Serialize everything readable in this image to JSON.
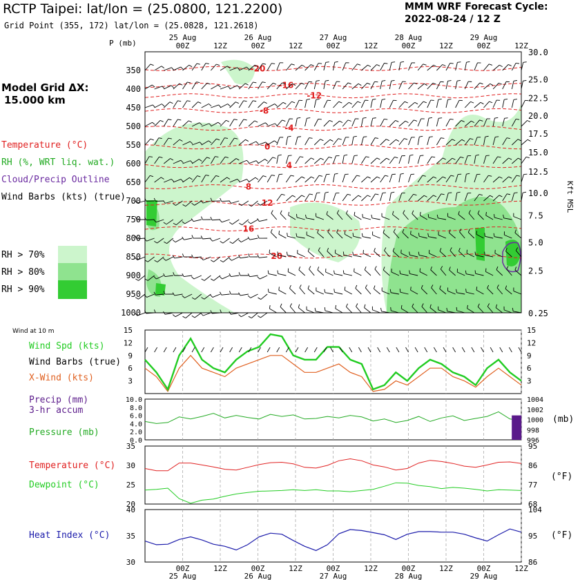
{
  "header": {
    "title": "RCTP Taipei:  lat/lon = (25.0800, 121.2200)",
    "subtitle": "Grid Point (355, 172) lat/lon = (25.0828, 121.2618)",
    "cycle_label": "MMM WRF Forecast Cycle:",
    "cycle_value": "2022-08-24 / 12  Z"
  },
  "left_panel": {
    "model_grid": "Model Grid ΔX:",
    "model_grid_value": "15.000 km",
    "legend_temperature": "Temperature (°C)",
    "legend_rh": "RH (%, WRT liq. wat.)",
    "legend_cloud": "Cloud/Precip Outline",
    "legend_barbs": "Wind Barbs (kts) (true)",
    "rh_70": "RH > 70%",
    "rh_80": "RH > 80%",
    "rh_90": "RH > 90%",
    "p_label": "P (mb)",
    "kft_label": "Kft MSL"
  },
  "colors": {
    "rh70": "#ccf5cc",
    "rh80": "#8fe38f",
    "rh90": "#33cc33",
    "temp": "#e02020",
    "wind": "#22cc22",
    "xwind": "#e06020",
    "pressure": "#22aa22",
    "dewpoint": "#22cc22",
    "heat": "#1a1aaa",
    "precip": "#5a1a8a",
    "cloud": "#6a2aa0"
  },
  "time_axis": {
    "dates": [
      "25 Aug",
      "26 Aug",
      "27 Aug",
      "28 Aug",
      "29 Aug"
    ],
    "hour_labels": [
      "00Z",
      "12Z",
      "00Z",
      "12Z",
      "00Z",
      "12Z",
      "00Z",
      "12Z",
      "00Z",
      "12Z"
    ],
    "start_hour": -12,
    "end_hour": 108
  },
  "chart_data": [
    {
      "type": "heatmap",
      "title": "Vertical cross-section (time-height)",
      "ylabel": "P (mb)",
      "y2label": "Kft MSL",
      "pressure_levels": [
        350,
        400,
        450,
        500,
        550,
        600,
        650,
        700,
        750,
        800,
        850,
        900,
        950,
        1000
      ],
      "kft_labels": [
        "30.0",
        "25.0",
        "22.5",
        "20.0",
        "17.5",
        "15.0",
        "12.5",
        "10.0",
        "7.5",
        "5.0",
        "2.5",
        "0.25"
      ],
      "kft_label_pressures": [
        302,
        375,
        425,
        472,
        520,
        570,
        622,
        680,
        740,
        812,
        888,
        1002
      ],
      "ylim": [
        300,
        1000
      ],
      "temperature_contours": [
        {
          "label": "-20",
          "p": 345,
          "hour": 24
        },
        {
          "label": "-16",
          "p": 390,
          "hour": 33
        },
        {
          "label": "-12",
          "p": 418,
          "hour": 42
        },
        {
          "label": "-8",
          "p": 458,
          "hour": 26
        },
        {
          "label": "-4",
          "p": 505,
          "hour": 34
        },
        {
          "label": "0",
          "p": 555,
          "hour": 27
        },
        {
          "label": "4",
          "p": 605,
          "hour": 34
        },
        {
          "label": "8",
          "p": 662,
          "hour": 21
        },
        {
          "label": "12",
          "p": 706,
          "hour": 27
        },
        {
          "label": "16",
          "p": 775,
          "hour": 21
        },
        {
          "label": "20",
          "p": 848,
          "hour": 30
        }
      ]
    },
    {
      "type": "line",
      "title": "Wind at 10 m",
      "ylim": [
        0,
        15
      ],
      "yticks": [
        3,
        6,
        9,
        12,
        15
      ],
      "series": [
        {
          "name": "Wind Spd (kts)",
          "values": [
            8,
            5,
            1,
            9,
            13,
            8,
            6,
            5,
            8,
            10,
            11,
            14,
            13.5,
            9,
            8,
            8,
            11,
            11,
            8,
            7,
            1,
            2,
            5,
            3,
            6,
            8,
            7,
            5,
            4,
            2,
            6,
            8,
            5,
            3
          ]
        },
        {
          "name": "X-Wind (kts)",
          "values": [
            6,
            4,
            0.5,
            6,
            9,
            6,
            5,
            4,
            6,
            7,
            8,
            9,
            9,
            7,
            5,
            5,
            6,
            7,
            5,
            4,
            0.5,
            1,
            3,
            2,
            4,
            6,
            6,
            4,
            3,
            1.5,
            4,
            6,
            4,
            2
          ]
        }
      ]
    },
    {
      "type": "line",
      "title": "Precip / Pressure",
      "yticks_left": [
        "0.0",
        "2.0",
        "4.0",
        "6.0",
        "8.0",
        "10.0"
      ],
      "yticks_right": [
        "996",
        "998",
        "1000",
        "1002",
        "1004"
      ],
      "right_unit": "(mb)",
      "precip_ylim": [
        0,
        10
      ],
      "pressure_ylim": [
        996,
        1004
      ],
      "series": [
        {
          "name": "Precip (mm) 3-hr accum",
          "bars": [
            {
              "hour": 106.5,
              "value": 6
            }
          ]
        },
        {
          "name": "Pressure (mb)",
          "values": [
            999.6,
            999.2,
            999.4,
            1000.5,
            1000.1,
            1000.6,
            1001.2,
            1000.3,
            1000.8,
            1000.4,
            1000.1,
            1001.0,
            1000.6,
            1000.9,
            1000.1,
            1000.2,
            1000.6,
            1000.3,
            1000.8,
            1000.5,
            999.7,
            1000.1,
            999.4,
            999.8,
            1000.6,
            999.6,
            1000.3,
            1000.7,
            999.8,
            1000.2,
            1000.6,
            1001.5,
            1000.1,
            999.8
          ]
        }
      ]
    },
    {
      "type": "line",
      "title": "Temperature / Dewpoint",
      "ylim": [
        20,
        35
      ],
      "yticks_left": [
        "20",
        "25",
        "30",
        "35"
      ],
      "yticks_right": [
        "68",
        "77",
        "86",
        "95"
      ],
      "right_unit": "(°F)",
      "series": [
        {
          "name": "Temperature (°C)",
          "values": [
            29.2,
            28.6,
            28.6,
            30.6,
            30.6,
            30.1,
            29.6,
            29.0,
            28.8,
            29.5,
            30.2,
            30.7,
            30.8,
            30.4,
            29.5,
            29.3,
            30.0,
            31.2,
            31.7,
            31.2,
            30.1,
            29.6,
            28.8,
            29.2,
            30.6,
            31.3,
            31.0,
            30.5,
            29.8,
            29.5,
            30.1,
            30.8,
            30.9,
            30.5
          ]
        },
        {
          "name": "Dewpoint (°C)",
          "values": [
            23.6,
            23.8,
            24.1,
            21.4,
            20.2,
            21.0,
            21.3,
            22.0,
            22.6,
            23.0,
            23.3,
            23.4,
            23.5,
            23.7,
            23.5,
            23.7,
            23.4,
            23.4,
            23.2,
            23.5,
            23.8,
            24.6,
            25.5,
            25.4,
            24.8,
            24.5,
            24.0,
            24.3,
            24.1,
            23.8,
            23.4,
            23.7,
            23.6,
            23.5
          ]
        }
      ]
    },
    {
      "type": "line",
      "title": "Heat Index",
      "ylim": [
        30,
        40
      ],
      "yticks_left": [
        "30",
        "35",
        "40"
      ],
      "yticks_right": [
        "86",
        "95",
        "104"
      ],
      "right_unit": "(°F)",
      "series": [
        {
          "name": "Heat Index (°C)",
          "values": [
            34.0,
            33.3,
            33.4,
            34.3,
            34.8,
            34.2,
            33.4,
            33.0,
            32.3,
            33.3,
            34.8,
            35.5,
            35.3,
            34.1,
            33.0,
            32.2,
            33.3,
            35.4,
            36.2,
            36.0,
            35.6,
            35.2,
            34.3,
            35.3,
            35.8,
            35.8,
            35.7,
            35.7,
            35.3,
            34.6,
            34.0,
            35.2,
            36.3,
            35.7
          ]
        }
      ]
    }
  ],
  "panel_labels": {
    "wind_at_10m": "Wind at 10 m",
    "wind_spd": "Wind Spd (kts)",
    "wind_barbs": "Wind Barbs (true)",
    "xwind": "X-Wind (kts)",
    "precip": "Precip (mm)",
    "precip2": "3-hr accum",
    "pressure": "Pressure (mb)",
    "temperature": "Temperature (°C)",
    "dewpoint": "Dewpoint (°C)",
    "heat_index": "Heat Index (°C)",
    "fahrenheit": "(°F)",
    "mb": "(mb)"
  }
}
